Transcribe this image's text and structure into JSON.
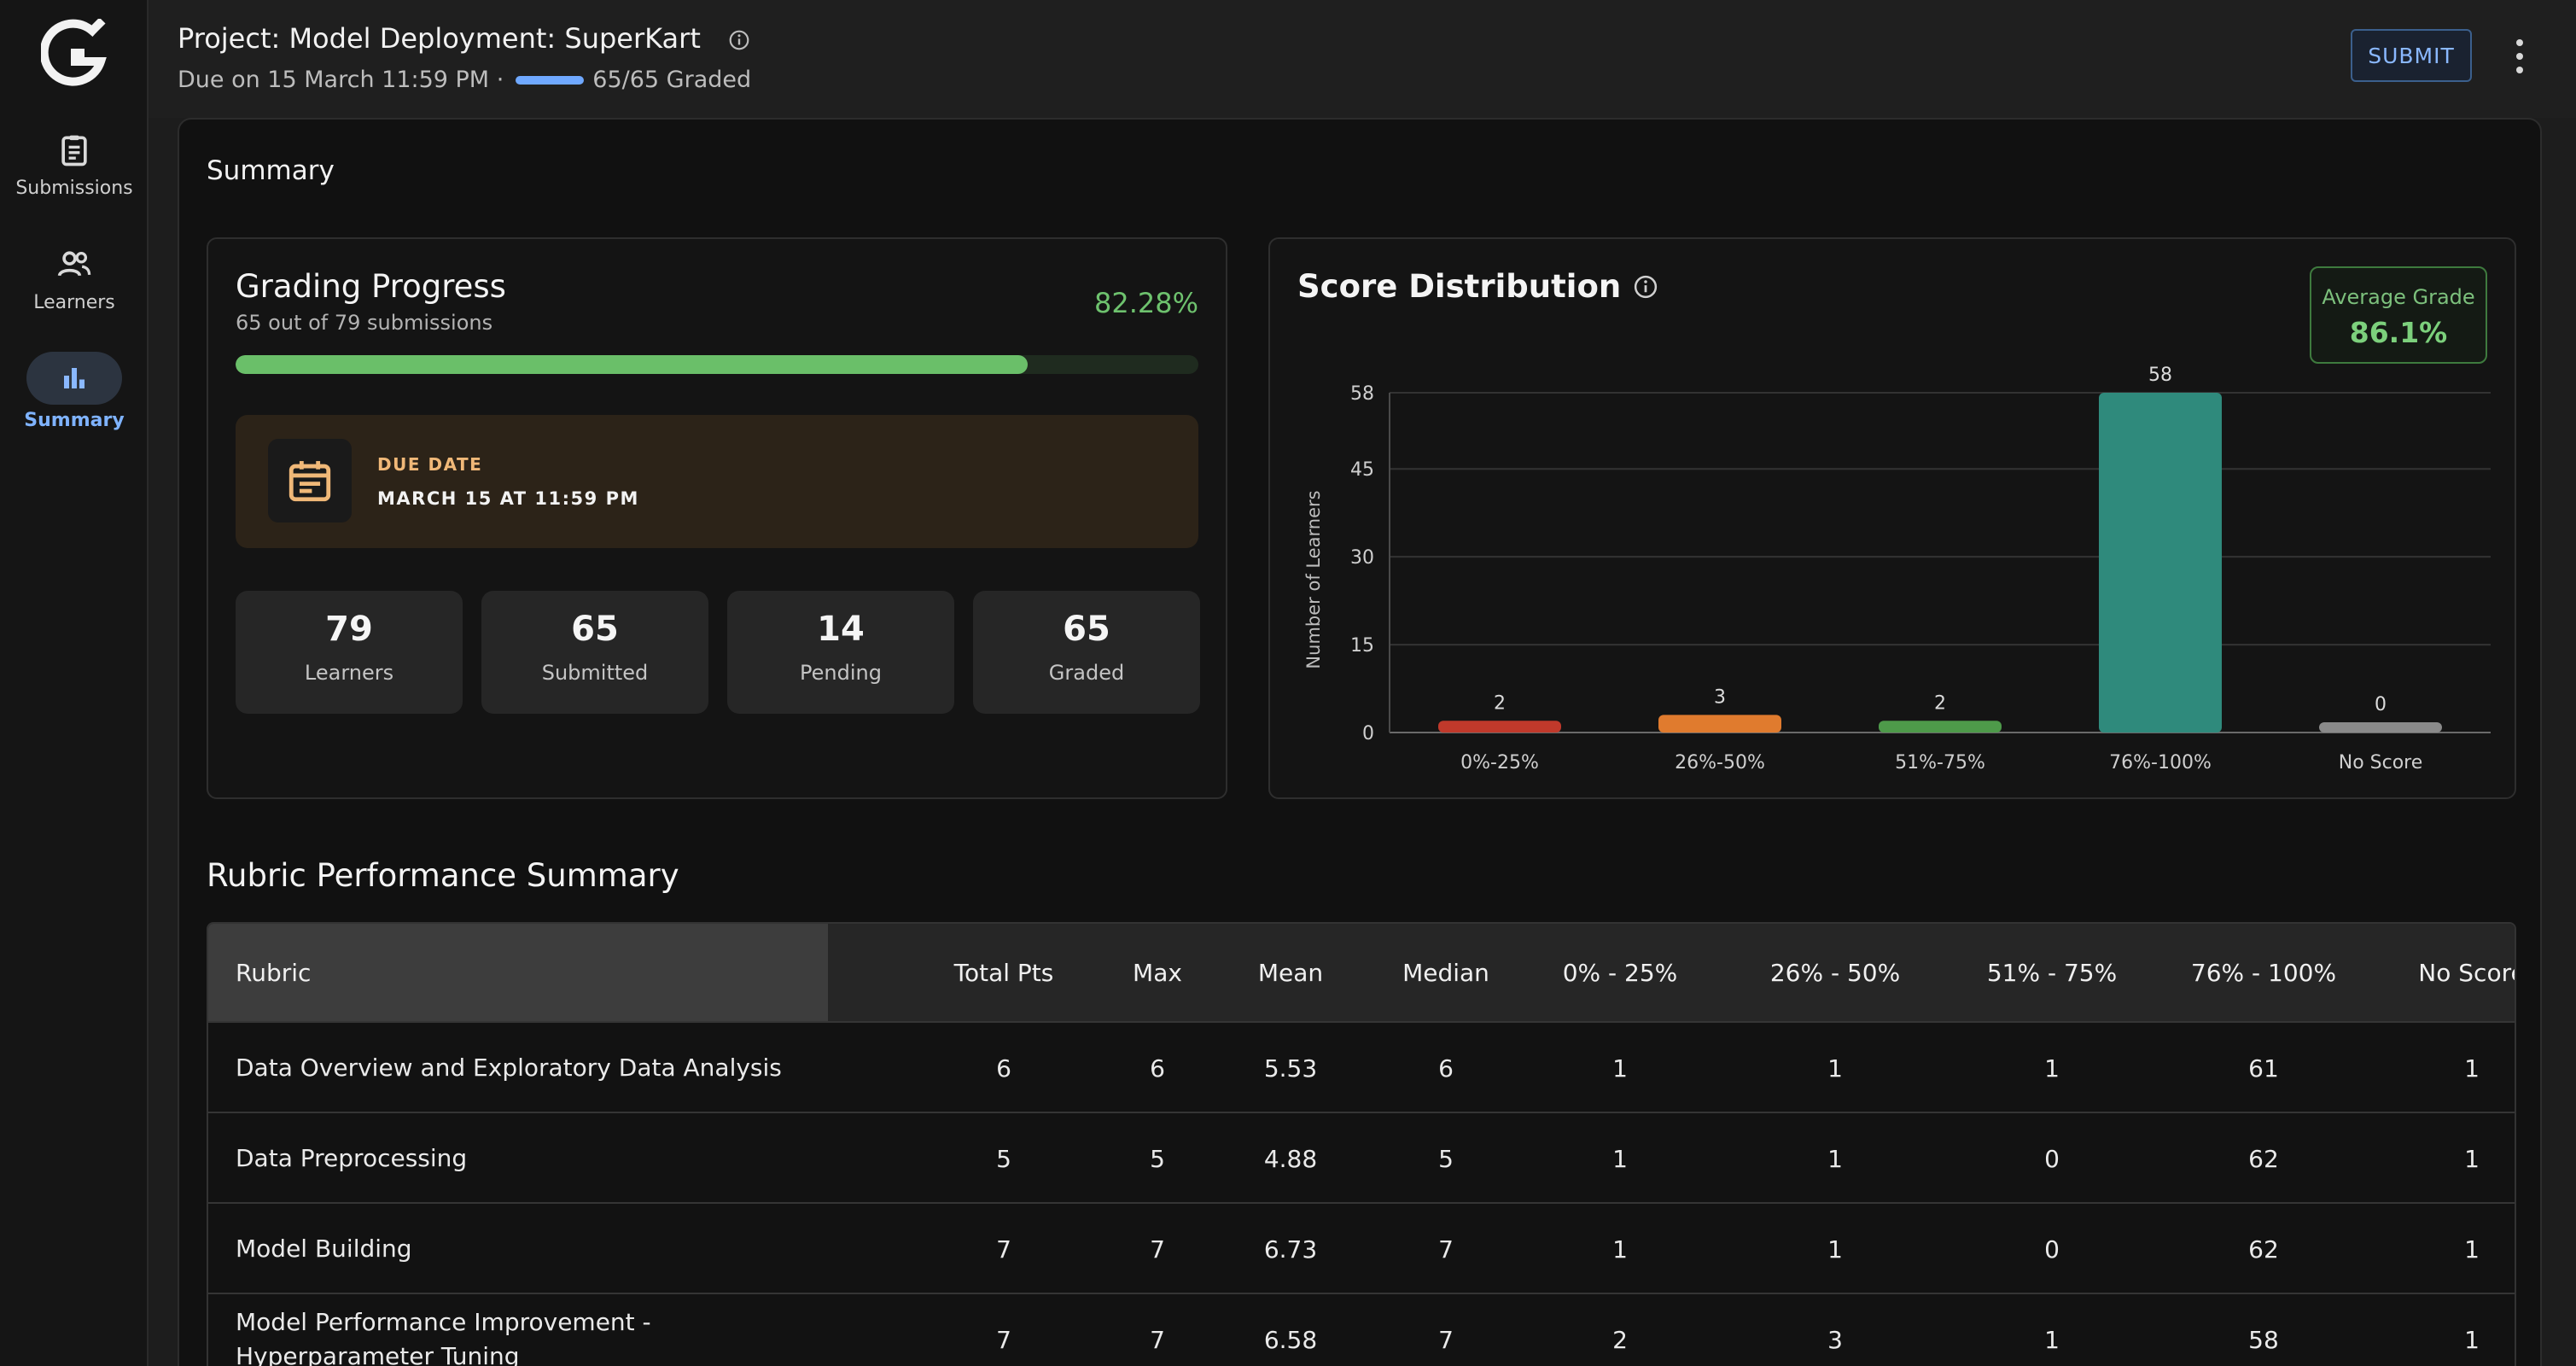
{
  "sidebar": {
    "items": [
      {
        "label": "Submissions",
        "icon": "clipboard-icon"
      },
      {
        "label": "Learners",
        "icon": "people-icon"
      },
      {
        "label": "Summary",
        "icon": "bar-chart-icon",
        "active": true
      }
    ]
  },
  "header": {
    "title": "Project: Model Deployment: SuperKart",
    "due": "Due on 15 March 11:59 PM ·",
    "graded": "65/65 Graded",
    "graded_fraction": 1.0,
    "submit_label": "SUBMIT"
  },
  "summary": {
    "heading": "Summary",
    "grading_progress": {
      "title": "Grading Progress",
      "subtitle": "65 out of 79 submissions",
      "percent_text": "82.28%",
      "percent": 82.28,
      "due_label": "DUE DATE",
      "due_value": "MARCH 15 AT 11:59 PM",
      "stats": [
        {
          "value": "79",
          "label": "Learners"
        },
        {
          "value": "65",
          "label": "Submitted"
        },
        {
          "value": "14",
          "label": "Pending"
        },
        {
          "value": "65",
          "label": "Graded"
        }
      ]
    },
    "score_distribution": {
      "title": "Score Distribution",
      "avg_label": "Average Grade",
      "avg_value": "86.1%"
    }
  },
  "chart_data": {
    "type": "bar",
    "categories": [
      "0%-25%",
      "26%-50%",
      "51%-75%",
      "76%-100%",
      "No Score"
    ],
    "values": [
      2,
      3,
      2,
      58,
      0
    ],
    "colors": [
      "#c0392b",
      "#e07b2e",
      "#4e9a4a",
      "#2f8a7c",
      "#8a8a8a"
    ],
    "ylabel": "Number of Learners",
    "yticks": [
      0,
      15,
      30,
      45,
      58
    ],
    "ylim": [
      0,
      58
    ],
    "grid": true
  },
  "rubric": {
    "heading": "Rubric Performance Summary",
    "columns": [
      "Rubric",
      "Total Pts",
      "Max",
      "Mean",
      "Median",
      "0% - 25%",
      "26% - 50%",
      "51% - 75%",
      "76% - 100%",
      "No Score"
    ],
    "rows": [
      [
        "Data Overview and Exploratory Data Analysis",
        "6",
        "6",
        "5.53",
        "6",
        "1",
        "1",
        "1",
        "61",
        "1"
      ],
      [
        "Data Preprocessing",
        "5",
        "5",
        "4.88",
        "5",
        "1",
        "1",
        "0",
        "62",
        "1"
      ],
      [
        "Model Building",
        "7",
        "7",
        "6.73",
        "7",
        "1",
        "1",
        "0",
        "62",
        "1"
      ],
      [
        "Model Performance Improvement - Hyperparameter Tuning",
        "7",
        "7",
        "6.58",
        "7",
        "2",
        "3",
        "1",
        "58",
        "1"
      ]
    ]
  }
}
